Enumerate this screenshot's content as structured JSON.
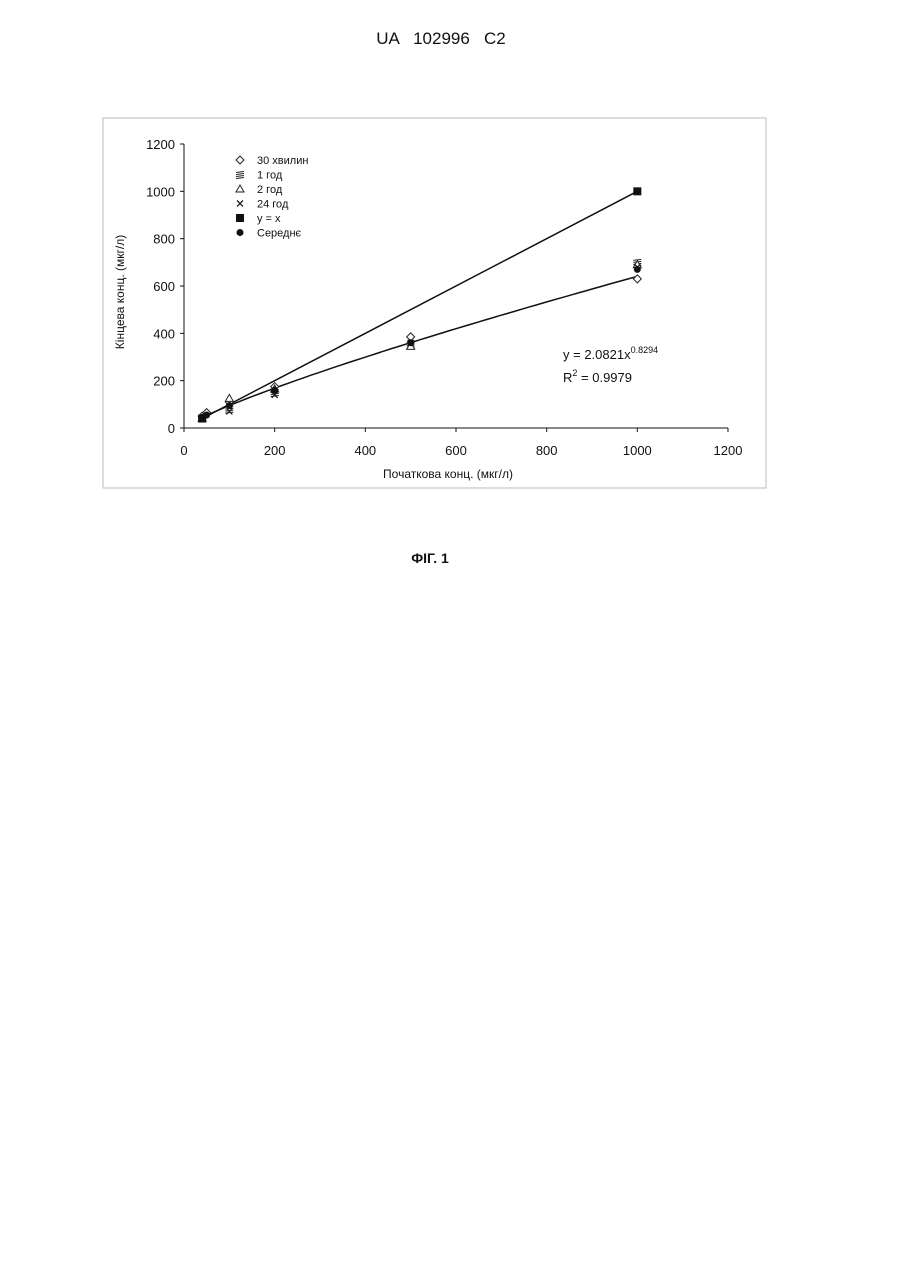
{
  "header": "UA   102996   C2",
  "caption": "ФІГ. 1",
  "chart_data": {
    "type": "scatter",
    "xlabel": "Початкова конц. (мкг/л)",
    "ylabel": "Кінцева конц. (мкг/л)",
    "xlim": [
      0,
      1200
    ],
    "xticks": [
      0,
      200,
      400,
      600,
      800,
      1000,
      1200
    ],
    "ylim": [
      0,
      1200
    ],
    "yticks": [
      0,
      200,
      400,
      600,
      800,
      1000,
      1200
    ],
    "legend": "upper-left",
    "series": [
      {
        "name": "30 хвилин",
        "color": "#222",
        "marker": "diamond",
        "x": [
          40,
          50,
          100,
          200,
          500,
          1000
        ],
        "values": [
          50,
          65,
          110,
          175,
          385,
          630
        ]
      },
      {
        "name": "1 год",
        "color": "#222",
        "marker": "hatch",
        "x": [
          40,
          100,
          200,
          500,
          1000
        ],
        "values": [
          45,
          80,
          150,
          355,
          700
        ]
      },
      {
        "name": "2 год",
        "color": "#222",
        "marker": "triangle",
        "x": [
          40,
          100,
          200,
          500,
          1000
        ],
        "values": [
          40,
          125,
          165,
          345,
          690
        ]
      },
      {
        "name": "24 год",
        "color": "#222",
        "marker": "cross",
        "x": [
          40,
          100,
          200,
          500,
          1000
        ],
        "values": [
          40,
          70,
          140,
          360,
          680
        ]
      },
      {
        "name": "y = x",
        "color": "#111",
        "marker": "square",
        "line": true,
        "x": [
          40,
          1000
        ],
        "values": [
          40,
          1000
        ]
      },
      {
        "name": "Середнє",
        "color": "#111",
        "marker": "circle",
        "x": [
          40,
          50,
          100,
          200,
          500,
          1000
        ],
        "values": [
          45,
          55,
          95,
          160,
          360,
          670
        ]
      }
    ],
    "trendline": {
      "prefix": "y = ",
      "a": 2.0821,
      "x": "x",
      "exponent": 0.8294,
      "r_label": "R",
      "r_sup": "2",
      "r_sep": " = ",
      "r2": 0.9979
    }
  }
}
